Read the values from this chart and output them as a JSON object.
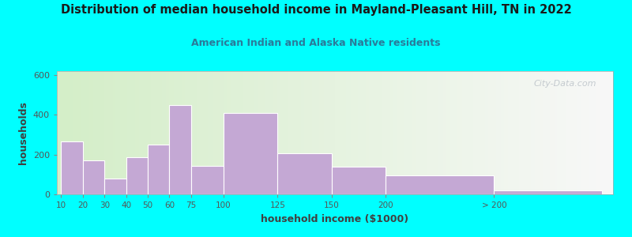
{
  "title": "Distribution of median household income in Mayland-Pleasant Hill, TN in 2022",
  "subtitle": "American Indian and Alaska Native residents",
  "xlabel": "household income ($1000)",
  "ylabel": "households",
  "background_outer": "#00FFFF",
  "background_inner_left": "#d4eec8",
  "background_inner_right": "#f8f8f8",
  "bar_color": "#c4a8d4",
  "bar_edge_color": "#ffffff",
  "title_color": "#1a1a1a",
  "subtitle_color": "#2a7a9a",
  "axis_label_color": "#404040",
  "tick_color": "#555555",
  "categories": [
    "10",
    "20",
    "30",
    "40",
    "50",
    "60",
    "75",
    "100",
    "125",
    "150",
    "200",
    "> 200"
  ],
  "values": [
    265,
    170,
    80,
    185,
    250,
    450,
    145,
    410,
    205,
    140,
    95,
    20
  ],
  "bar_lefts": [
    0,
    10,
    20,
    30,
    40,
    50,
    60,
    75,
    100,
    125,
    150,
    200
  ],
  "bar_widths": [
    10,
    10,
    10,
    10,
    10,
    10,
    15,
    25,
    25,
    25,
    50,
    50
  ],
  "ylim": [
    0,
    620
  ],
  "yticks": [
    0,
    200,
    400,
    600
  ],
  "watermark": "City-Data.com"
}
